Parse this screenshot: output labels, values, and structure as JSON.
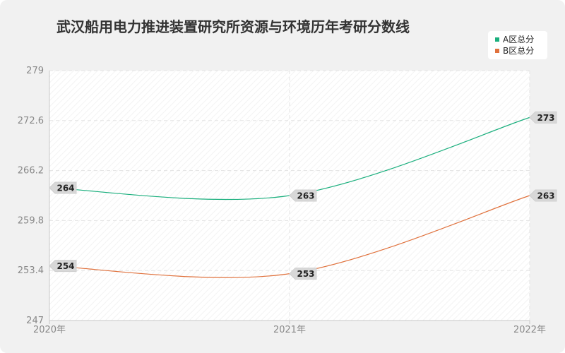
{
  "chart_data": {
    "type": "line",
    "title": "武汉船用电力推进装置研究所资源与环境历年考研分数线",
    "categories": [
      "2020年",
      "2021年",
      "2022年"
    ],
    "series": [
      {
        "name": "A区总分",
        "values": [
          264,
          263,
          273
        ],
        "color": "#1aaf7d"
      },
      {
        "name": "B区总分",
        "values": [
          254,
          253,
          263
        ],
        "color": "#e0713c"
      }
    ],
    "ylim": [
      247,
      279
    ],
    "yticks": [
      "247",
      "253.4",
      "259.8",
      "266.2",
      "272.6",
      "279"
    ],
    "grid": true,
    "legend_position": "top-right"
  }
}
